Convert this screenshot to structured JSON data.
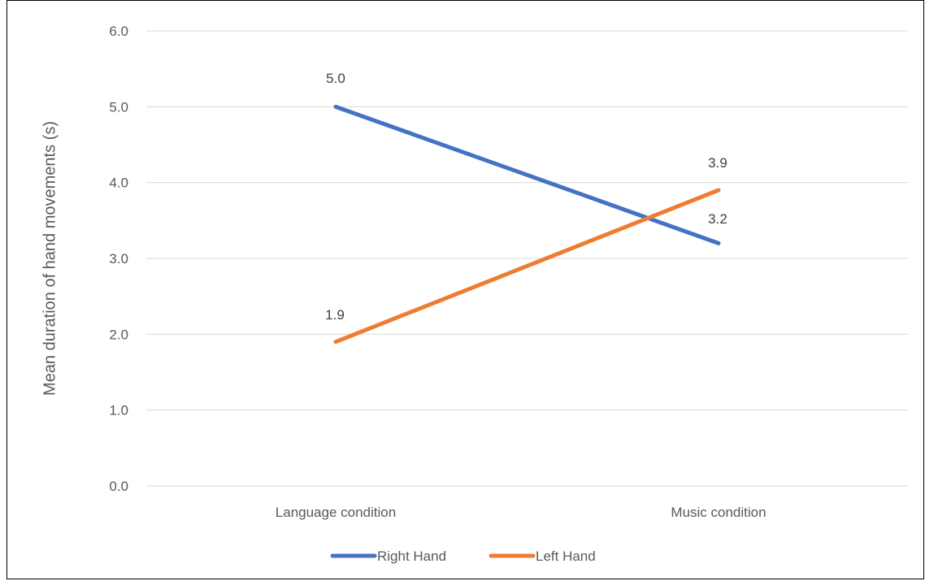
{
  "chart_data": {
    "type": "line",
    "title": "",
    "xlabel": "",
    "ylabel": "Mean duration of hand movements (s)",
    "categories": [
      "Language condition",
      "Music condition"
    ],
    "ylim": [
      0,
      6
    ],
    "yticks": [
      "0.0",
      "1.0",
      "2.0",
      "3.0",
      "4.0",
      "5.0",
      "6.0"
    ],
    "grid": true,
    "legend_position": "bottom",
    "series": [
      {
        "name": "Right Hand",
        "values": [
          5.0,
          3.2
        ],
        "labels": [
          "5.0",
          "3.2"
        ],
        "color": "#4472C4"
      },
      {
        "name": "Left Hand",
        "values": [
          1.9,
          3.9
        ],
        "labels": [
          "1.9",
          "3.9"
        ],
        "color": "#ED7D31"
      }
    ]
  },
  "colors": {
    "gridline": "#D9D9D9",
    "border": "#000000"
  }
}
